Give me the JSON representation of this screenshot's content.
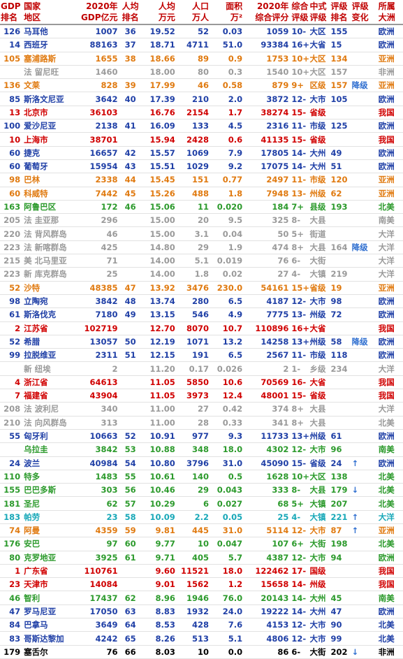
{
  "colors": {
    "black": "#000000",
    "blue": "#1f3fa6",
    "orange": "#e07a10",
    "red": "#d00000",
    "green": "#2c9a2c",
    "gray": "#9a9a9a",
    "cyan": "#18a8b8",
    "header": "#c00000"
  },
  "headers": [
    [
      "GDP",
      "排名"
    ],
    [
      "国家",
      "地区"
    ],
    [
      "2020年",
      "GDP亿元"
    ],
    [
      "人均",
      "排名"
    ],
    [
      "人均",
      "万元"
    ],
    [
      "人口",
      "万人"
    ],
    [
      "面积",
      "万²"
    ],
    [
      "2020年",
      "综合评分"
    ],
    [
      "综合",
      "评级"
    ],
    [
      "中式",
      "评级"
    ],
    [
      "评级",
      "排名"
    ],
    [
      "评级",
      "变化"
    ],
    [
      "所属",
      "大洲"
    ]
  ],
  "rows": [
    {
      "c": "blue",
      "cells": [
        "126",
        "马耳他",
        "1007",
        "36",
        "19.52",
        "52",
        "0.03",
        "1059",
        "10-",
        "大区",
        "155",
        "",
        "欧洲"
      ]
    },
    {
      "c": "blue",
      "cells": [
        "14",
        "西班牙",
        "88163",
        "37",
        "18.71",
        "4711",
        "51.0",
        "93384",
        "16+",
        "大省",
        "15",
        "",
        "欧洲"
      ]
    },
    {
      "c": "orange",
      "cells": [
        "105",
        "塞浦路斯",
        "1655",
        "38",
        "18.66",
        "89",
        "0.9",
        "1753",
        "10+",
        "大区",
        "134",
        "",
        "亚洲"
      ]
    },
    {
      "c": "gray",
      "cells": [
        "",
        "法 留尼旺",
        "1460",
        "",
        "18.00",
        "80",
        "0.3",
        "1540",
        "10+",
        "大区",
        "157",
        "",
        "非洲"
      ]
    },
    {
      "c": "orange",
      "cells": [
        "136",
        "文莱",
        "828",
        "39",
        "17.99",
        "46",
        "0.58",
        "879",
        "9+",
        "区级",
        "157",
        "降级",
        "亚洲"
      ]
    },
    {
      "c": "blue",
      "cells": [
        "85",
        "斯洛文尼亚",
        "3642",
        "40",
        "17.39",
        "210",
        "2.0",
        "3872",
        "12-",
        "大市",
        "105",
        "",
        "欧洲"
      ]
    },
    {
      "c": "red",
      "cells": [
        "13",
        "北京市",
        "36103",
        "",
        "16.76",
        "2154",
        "1.7",
        "38274",
        "15-",
        "省级",
        "",
        "",
        "我国"
      ]
    },
    {
      "c": "blue",
      "cells": [
        "100",
        "爱沙尼亚",
        "2138",
        "41",
        "16.09",
        "133",
        "4.5",
        "2316",
        "11-",
        "市级",
        "125",
        "",
        "欧洲"
      ]
    },
    {
      "c": "red",
      "cells": [
        "10",
        "上海市",
        "38701",
        "",
        "15.94",
        "2428",
        "0.6",
        "41135",
        "15-",
        "省级",
        "",
        "",
        "我国"
      ]
    },
    {
      "c": "blue",
      "cells": [
        "60",
        "捷克",
        "16657",
        "42",
        "15.57",
        "1069",
        "7.9",
        "17805",
        "14-",
        "大州",
        "49",
        "",
        "欧洲"
      ]
    },
    {
      "c": "blue",
      "cells": [
        "60",
        "葡萄牙",
        "15954",
        "43",
        "15.51",
        "1029",
        "9.2",
        "17075",
        "14-",
        "大州",
        "51",
        "",
        "欧洲"
      ]
    },
    {
      "c": "orange",
      "cells": [
        "98",
        "巴林",
        "2338",
        "44",
        "15.45",
        "151",
        "0.77",
        "2497",
        "11-",
        "市级",
        "120",
        "",
        "亚洲"
      ]
    },
    {
      "c": "orange",
      "cells": [
        "60",
        "科威特",
        "7442",
        "45",
        "15.26",
        "488",
        "1.8",
        "7948",
        "13-",
        "州级",
        "62",
        "",
        "亚洲"
      ]
    },
    {
      "c": "green",
      "cells": [
        "163",
        "阿鲁巴区",
        "172",
        "46",
        "15.06",
        "11",
        "0.020",
        "184",
        "7+",
        "县级",
        "193",
        "",
        "北美"
      ]
    },
    {
      "c": "gray",
      "cells": [
        "205",
        "法 圭亚那",
        "296",
        "",
        "15.00",
        "20",
        "9.5",
        "325",
        "8-",
        "大县",
        "",
        "",
        "南美"
      ]
    },
    {
      "c": "gray",
      "cells": [
        "220",
        "法 背风群岛",
        "46",
        "",
        "15.00",
        "3.1",
        "0.04",
        "50",
        "5+",
        "街道",
        "",
        "",
        "大洋"
      ]
    },
    {
      "c": "gray",
      "cells": [
        "223",
        "法 新喀群岛",
        "425",
        "",
        "14.80",
        "29",
        "1.9",
        "474",
        "8+",
        "大县",
        "164",
        "降级",
        "大洋"
      ]
    },
    {
      "c": "gray",
      "cells": [
        "215",
        "美 北马里亚",
        "71",
        "",
        "14.00",
        "5.1",
        "0.019",
        "76",
        "6-",
        "大街",
        "",
        "",
        "大洋"
      ]
    },
    {
      "c": "gray",
      "cells": [
        "223",
        "新 库克群岛",
        "25",
        "",
        "14.00",
        "1.8",
        "0.02",
        "27",
        "4-",
        "大镇",
        "219",
        "",
        "大洋"
      ]
    },
    {
      "c": "orange",
      "cells": [
        "52",
        "沙特",
        "48385",
        "47",
        "13.92",
        "3476",
        "230.0",
        "54161",
        "15+",
        "省级",
        "19",
        "",
        "亚洲"
      ]
    },
    {
      "c": "blue",
      "cells": [
        "98",
        "立陶宛",
        "3842",
        "48",
        "13.74",
        "280",
        "6.5",
        "4187",
        "12-",
        "大市",
        "98",
        "",
        "欧洲"
      ]
    },
    {
      "c": "blue",
      "cells": [
        "61",
        "斯洛伐克",
        "7180",
        "49",
        "13.15",
        "546",
        "4.9",
        "7775",
        "13-",
        "州级",
        "72",
        "",
        "欧洲"
      ]
    },
    {
      "c": "red",
      "cells": [
        "2",
        "江苏省",
        "102719",
        "",
        "12.70",
        "8070",
        "10.7",
        "110896",
        "16+",
        "大省",
        "",
        "",
        "我国"
      ]
    },
    {
      "c": "blue",
      "cells": [
        "52",
        "希腊",
        "13057",
        "50",
        "12.19",
        "1071",
        "13.2",
        "14258",
        "13+",
        "州级",
        "58",
        "降级",
        "欧洲"
      ]
    },
    {
      "c": "blue",
      "cells": [
        "99",
        "拉脱维亚",
        "2311",
        "51",
        "12.15",
        "191",
        "6.5",
        "2567",
        "11-",
        "市级",
        "118",
        "",
        "欧洲"
      ]
    },
    {
      "c": "gray",
      "cells": [
        "",
        "新 纽埃",
        "2",
        "",
        "11.20",
        "0.17",
        "0.026",
        "2",
        "1-",
        "乡级",
        "234",
        "",
        "大洋"
      ]
    },
    {
      "c": "red",
      "cells": [
        "4",
        "浙江省",
        "64613",
        "",
        "11.05",
        "5850",
        "10.6",
        "70569",
        "16-",
        "大省",
        "",
        "",
        "我国"
      ]
    },
    {
      "c": "red",
      "cells": [
        "7",
        "福建省",
        "43904",
        "",
        "11.05",
        "3973",
        "12.4",
        "48001",
        "15-",
        "省级",
        "",
        "",
        "我国"
      ]
    },
    {
      "c": "gray",
      "cells": [
        "208",
        "法 波利尼",
        "340",
        "",
        "11.00",
        "27",
        "0.42",
        "374",
        "8+",
        "大县",
        "",
        "",
        "大洋"
      ]
    },
    {
      "c": "gray",
      "cells": [
        "210",
        "法 向风群岛",
        "313",
        "",
        "11.00",
        "28",
        "0.33",
        "341",
        "8+",
        "大县",
        "",
        "",
        "北美"
      ]
    },
    {
      "c": "blue",
      "cells": [
        "55",
        "匈牙利",
        "10663",
        "52",
        "10.91",
        "977",
        "9.3",
        "11733",
        "13+",
        "州级",
        "61",
        "",
        "欧洲"
      ]
    },
    {
      "c": "green",
      "cells": [
        "",
        "乌拉圭",
        "3842",
        "53",
        "10.88",
        "348",
        "18.0",
        "4302",
        "12-",
        "大市",
        "96",
        "",
        "南美"
      ]
    },
    {
      "c": "blue",
      "cells": [
        "24",
        "波兰",
        "40984",
        "54",
        "10.80",
        "3796",
        "31.0",
        "45090",
        "15-",
        "省级",
        "24",
        "↑",
        "欧洲"
      ]
    },
    {
      "c": "green",
      "cells": [
        "110",
        "特多",
        "1483",
        "55",
        "10.61",
        "140",
        "0.5",
        "1628",
        "10+",
        "大区",
        "138",
        "",
        "北美"
      ]
    },
    {
      "c": "green",
      "cells": [
        "155",
        "巴巴多斯",
        "303",
        "56",
        "10.46",
        "29",
        "0.043",
        "333",
        "8-",
        "大县",
        "179",
        "↓",
        "北美"
      ]
    },
    {
      "c": "green",
      "cells": [
        "181",
        "圣尼",
        "62",
        "57",
        "10.29",
        "6",
        "0.027",
        "68",
        "5+",
        "大镇",
        "207",
        "",
        "北美"
      ]
    },
    {
      "c": "cyan",
      "cells": [
        "183",
        "帕劳",
        "23",
        "58",
        "10.09",
        "2.2",
        "0.05",
        "25",
        "4-",
        "大镇",
        "221",
        "↑",
        "大洋"
      ]
    },
    {
      "c": "orange",
      "cells": [
        "74",
        "阿曼",
        "4359",
        "59",
        "9.81",
        "445",
        "31.0",
        "5114",
        "12-",
        "大市",
        "87",
        "↑",
        "亚洲"
      ]
    },
    {
      "c": "green",
      "cells": [
        "176",
        "安巴",
        "97",
        "60",
        "9.77",
        "10",
        "0.047",
        "107",
        "6+",
        "大街",
        "198",
        "",
        "北美"
      ]
    },
    {
      "c": "green",
      "cells": [
        "80",
        "克罗地亚",
        "3925",
        "61",
        "9.71",
        "405",
        "5.7",
        "4387",
        "12-",
        "大市",
        "94",
        "",
        "欧洲"
      ]
    },
    {
      "c": "red",
      "cells": [
        "1",
        "广东省",
        "110761",
        "",
        "9.60",
        "11521",
        "18.0",
        "122462",
        "17-",
        "国级",
        "",
        "",
        "我国"
      ]
    },
    {
      "c": "red",
      "cells": [
        "23",
        "天津市",
        "14084",
        "",
        "9.01",
        "1562",
        "1.2",
        "15658",
        "14-",
        "州级",
        "",
        "",
        "我国"
      ]
    },
    {
      "c": "green",
      "cells": [
        "46",
        "智利",
        "17437",
        "62",
        "8.96",
        "1946",
        "76.0",
        "20143",
        "14-",
        "大州",
        "45",
        "",
        "南美"
      ]
    },
    {
      "c": "blue",
      "cells": [
        "47",
        "罗马尼亚",
        "17050",
        "63",
        "8.83",
        "1932",
        "24.0",
        "19222",
        "14-",
        "大州",
        "47",
        "",
        "欧洲"
      ]
    },
    {
      "c": "blue",
      "cells": [
        "84",
        "巴拿马",
        "3649",
        "64",
        "8.53",
        "428",
        "7.6",
        "4153",
        "12-",
        "大市",
        "90",
        "",
        "北美"
      ]
    },
    {
      "c": "blue",
      "cells": [
        "83",
        "哥斯达黎加",
        "4242",
        "65",
        "8.26",
        "513",
        "5.1",
        "4806",
        "12-",
        "大市",
        "99",
        "",
        "北美"
      ]
    },
    {
      "c": "black",
      "cells": [
        "179",
        "塞舌尔",
        "76",
        "66",
        "8.03",
        "10",
        "0.0",
        "86",
        "6-",
        "大街",
        "202",
        "↓",
        "非洲"
      ]
    }
  ]
}
